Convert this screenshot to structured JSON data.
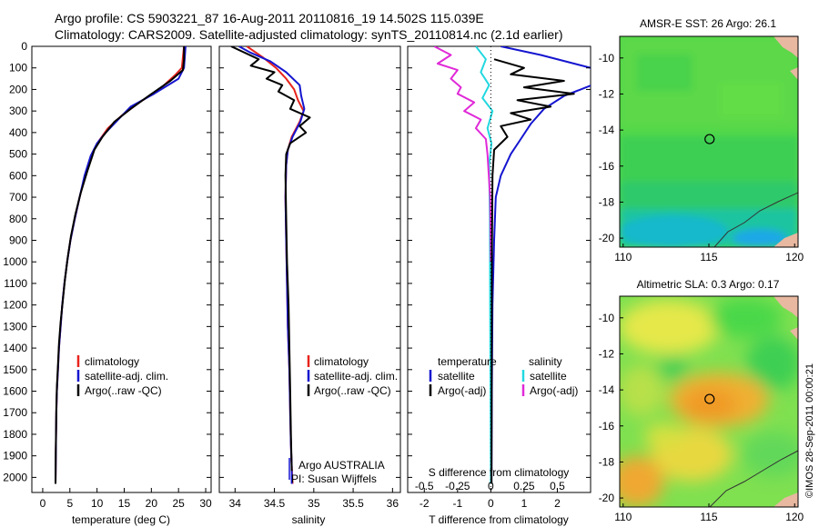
{
  "header": {
    "line1": "Argo profile: CS 5903221_87 16-Aug-2011 20110816_19 14.502S 115.039E",
    "line2": "Climatology: CARS2009. Satellite-adjusted climatology: synTS_20110814.nc (2.1d earlier)"
  },
  "side_stamp": "©IMOS 28-Sep-2011 00:00:21",
  "colors": {
    "climatology": "#e8231c",
    "satellite": "#1515d0",
    "argo": "#000000",
    "salinity_sat": "#22d8e0",
    "salinity_argo": "#e02ad8"
  },
  "chart_data": [
    {
      "type": "line",
      "xlabel": "temperature (deg C)",
      "xlim": [
        -2,
        31
      ],
      "ylim": [
        2070,
        0
      ],
      "xticks": [
        0,
        5,
        10,
        15,
        20,
        25,
        30
      ],
      "yticks": [
        0,
        100,
        200,
        300,
        400,
        500,
        600,
        700,
        800,
        900,
        1000,
        1100,
        1200,
        1300,
        1400,
        1500,
        1600,
        1700,
        1800,
        1900,
        2000
      ],
      "legend": [
        "climatology",
        "satellite-adj. clim.",
        "Argo(..raw -QC)"
      ],
      "series": [
        {
          "name": "climatology",
          "x": [
            26.0,
            25.6,
            24.5,
            21.5,
            17.8,
            14.6,
            12.0,
            10.3,
            9.0,
            7.8,
            6.8,
            5.9,
            5.1,
            4.5,
            4.0,
            3.6,
            3.3,
            3.0,
            2.8,
            2.6,
            2.5,
            2.4,
            2.35
          ],
          "y": [
            0,
            100,
            130,
            200,
            260,
            320,
            380,
            440,
            500,
            600,
            700,
            800,
            900,
            1000,
            1100,
            1200,
            1300,
            1400,
            1500,
            1600,
            1700,
            1900,
            2030
          ]
        },
        {
          "name": "satellite-adj. clim.",
          "x": [
            26.3,
            26.0,
            25.0,
            20.5,
            16.2,
            13.9,
            11.6,
            10.0,
            8.8,
            7.7,
            6.8,
            5.9,
            5.1,
            4.5,
            4.0,
            3.6,
            3.3,
            3.0,
            2.8,
            2.6,
            2.5,
            2.4,
            2.35
          ],
          "y": [
            0,
            100,
            150,
            220,
            280,
            340,
            400,
            450,
            510,
            600,
            700,
            800,
            900,
            1000,
            1100,
            1200,
            1300,
            1400,
            1500,
            1600,
            1700,
            1900,
            2030
          ]
        },
        {
          "name": "Argo(..raw -QC)",
          "x": [
            26.0,
            26.0,
            25.8,
            23.5,
            19.5,
            16.2,
            13.2,
            11.0,
            9.5,
            8.2,
            7.0,
            6.0,
            5.2,
            4.6,
            4.1,
            3.7,
            3.3,
            3.0,
            2.8,
            2.6,
            2.5,
            2.4,
            2.35
          ],
          "y": [
            0,
            60,
            110,
            160,
            230,
            290,
            350,
            420,
            480,
            580,
            680,
            780,
            880,
            980,
            1080,
            1180,
            1280,
            1380,
            1480,
            1580,
            1680,
            1880,
            2030
          ]
        }
      ]
    },
    {
      "type": "line",
      "xlabel": "salinity",
      "xlim": [
        33.8,
        36.1
      ],
      "ylim": [
        2070,
        0
      ],
      "xticks": [
        34,
        34.5,
        35,
        35.5,
        36
      ],
      "legend": [
        "climatology",
        "satellite-adj. clim.",
        "Argo(..raw -QC)"
      ],
      "annotation": [
        "Argo AUSTRALIA",
        "PI: Susan Wijffels"
      ],
      "series": [
        {
          "name": "climatology",
          "x": [
            34.15,
            34.35,
            34.52,
            34.65,
            34.75,
            34.8,
            34.87,
            34.82,
            34.72,
            34.67,
            34.65,
            34.64,
            34.65,
            34.66,
            34.67,
            34.69,
            34.7,
            34.71,
            34.72,
            34.73
          ],
          "y": [
            0,
            50,
            100,
            150,
            200,
            250,
            300,
            350,
            420,
            480,
            550,
            700,
            900,
            1100,
            1300,
            1500,
            1700,
            1850,
            1950,
            2030
          ]
        },
        {
          "name": "satellite-adj. clim.",
          "x": [
            34.05,
            34.2,
            34.45,
            34.65,
            34.82,
            34.84,
            34.88,
            34.83,
            34.73,
            34.67,
            34.65,
            34.64,
            34.65,
            34.66,
            34.67,
            34.69,
            34.7,
            34.71,
            34.72,
            34.72
          ],
          "y": [
            0,
            30,
            70,
            120,
            180,
            230,
            290,
            350,
            420,
            480,
            550,
            700,
            900,
            1100,
            1300,
            1500,
            1700,
            1850,
            1950,
            2030
          ]
        },
        {
          "name": "Argo(..raw -QC)",
          "x": [
            33.95,
            34.3,
            34.2,
            34.5,
            34.4,
            34.6,
            34.55,
            34.75,
            34.7,
            34.95,
            34.82,
            34.9,
            34.7,
            34.65,
            34.64,
            34.65,
            34.66,
            34.68,
            34.69,
            34.7,
            34.71,
            34.72
          ],
          "y": [
            0,
            60,
            90,
            120,
            150,
            180,
            210,
            250,
            290,
            330,
            370,
            400,
            450,
            500,
            600,
            800,
            1000,
            1200,
            1400,
            1600,
            1800,
            1970
          ]
        }
      ]
    },
    {
      "type": "line",
      "xlabel": "T difference from climatology",
      "xlabel_top": "S difference from climatology",
      "xlim": [
        -2.5,
        3.0
      ],
      "ylim": [
        2070,
        0
      ],
      "xticks": [
        -2,
        -1,
        0,
        1,
        2
      ],
      "xticks_s": [
        "-0.5",
        "-0.25",
        "0",
        "0.25",
        "0.5"
      ],
      "legend_headers": [
        "temperature",
        "salinity"
      ],
      "legend": [
        "satellite",
        "Argo(-adj)",
        "satellite",
        "Argo(-adj)"
      ],
      "series": [
        {
          "name": "satellite",
          "x": [
            0.3,
            1.5,
            3.0,
            3.2,
            2.2,
            1.6,
            1.2,
            0.9,
            0.6,
            0.3,
            0.15,
            0.1,
            0.05,
            0.03,
            0.02
          ],
          "y": [
            0,
            40,
            100,
            170,
            230,
            290,
            360,
            430,
            500,
            600,
            700,
            900,
            1200,
            1600,
            2030
          ]
        },
        {
          "name": "Argo(-adj)",
          "x": [
            0.1,
            1.0,
            0.6,
            2.2,
            1.0,
            2.5,
            0.8,
            1.8,
            0.6,
            1.2,
            0.3,
            0.5,
            0.1,
            0.05,
            0.03,
            0.02
          ],
          "y": [
            60,
            100,
            130,
            160,
            190,
            220,
            250,
            280,
            310,
            340,
            370,
            420,
            480,
            600,
            1000,
            2030
          ]
        },
        {
          "name": "satellite",
          "x": [
            -0.45,
            -0.15,
            -0.3,
            -0.05,
            -0.25,
            0.05,
            -0.1,
            0.02,
            -0.05,
            -0.03,
            -0.02,
            -0.01,
            0.0
          ],
          "y": [
            0,
            60,
            120,
            180,
            240,
            300,
            380,
            450,
            550,
            800,
            1200,
            1600,
            2030
          ]
        },
        {
          "name": "Argo(-adj)",
          "x": [
            -1.7,
            -1.2,
            -1.6,
            -1.0,
            -1.2,
            -0.9,
            -1.0,
            -0.5,
            -0.8,
            -0.3,
            -0.45,
            -0.15,
            -0.1,
            -0.02,
            0.0
          ],
          "y": [
            0,
            40,
            80,
            110,
            150,
            190,
            220,
            260,
            300,
            340,
            380,
            430,
            500,
            700,
            1000
          ]
        }
      ]
    },
    {
      "type": "heatmap",
      "title": "AMSR-E SST: 26 Argo: 26.1",
      "xlim": [
        109.8,
        120.2
      ],
      "ylim": [
        -20.5,
        -8.8
      ],
      "xticks": [
        110,
        115,
        120
      ],
      "yticks": [
        -10,
        -12,
        -14,
        -16,
        -18,
        -20
      ],
      "marker": {
        "lon": 115.039,
        "lat": -14.502
      }
    },
    {
      "type": "heatmap",
      "title": "Altimetric SLA: 0.3 Argo: 0.17",
      "xlim": [
        109.8,
        120.2
      ],
      "ylim": [
        -20.5,
        -8.8
      ],
      "xticks": [
        110,
        115,
        120
      ],
      "yticks": [
        -10,
        -12,
        -14,
        -16,
        -18,
        -20
      ],
      "marker": {
        "lon": 115.039,
        "lat": -14.502
      }
    }
  ]
}
